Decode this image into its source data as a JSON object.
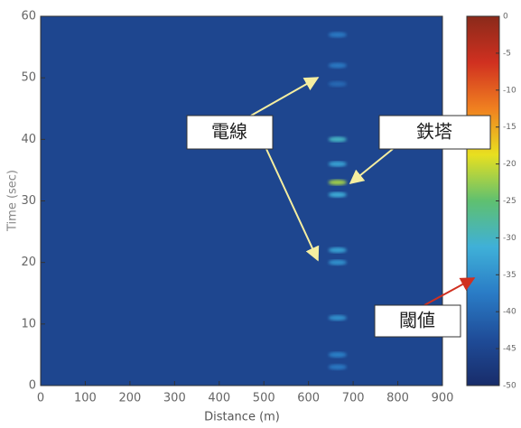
{
  "chart_data": {
    "type": "heatmap",
    "xlabel": "Distance (m)",
    "ylabel": "Time (sec)",
    "xlim": [
      0,
      900
    ],
    "xticks": [
      0,
      100,
      200,
      300,
      400,
      500,
      600,
      700,
      800,
      900
    ],
    "ylim": [
      0,
      60
    ],
    "yticks": [
      0,
      10,
      20,
      30,
      40,
      50,
      60
    ],
    "clim": [
      -50,
      0
    ],
    "cticks": [
      0,
      -5,
      -10,
      -15,
      -20,
      -25,
      -30,
      -35,
      -40,
      -45,
      -50
    ],
    "colormap": [
      "#182c6a",
      "#1f4c98",
      "#2a7cc6",
      "#3fb0d8",
      "#5fc070",
      "#e8e020",
      "#f08020",
      "#d03020",
      "#8a2a1a"
    ],
    "background": -45,
    "spots": [
      {
        "x": 665,
        "t": 57,
        "value": -38
      },
      {
        "x": 665,
        "t": 52,
        "value": -38
      },
      {
        "x": 665,
        "t": 49,
        "value": -40
      },
      {
        "x": 665,
        "t": 40,
        "value": -30
      },
      {
        "x": 665,
        "t": 36,
        "value": -33
      },
      {
        "x": 665,
        "t": 33,
        "value": -22
      },
      {
        "x": 665,
        "t": 31,
        "value": -32
      },
      {
        "x": 665,
        "t": 22,
        "value": -33
      },
      {
        "x": 665,
        "t": 20,
        "value": -35
      },
      {
        "x": 665,
        "t": 11,
        "value": -35
      },
      {
        "x": 665,
        "t": 5,
        "value": -37
      },
      {
        "x": 665,
        "t": 3,
        "value": -38
      }
    ],
    "annotations": [
      "電線",
      "鉄塔",
      "閾値"
    ]
  }
}
